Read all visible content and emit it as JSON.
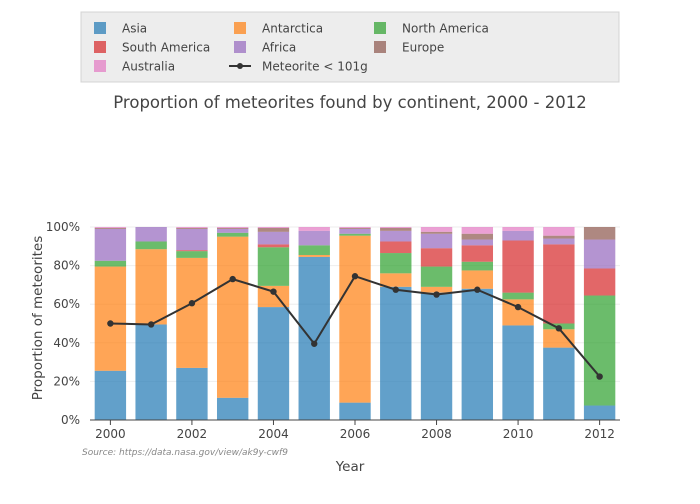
{
  "chart_data": {
    "type": "bar",
    "stacked": true,
    "title": "Proportion of meteorites found by continent, 2000 - 2012",
    "xlabel": "Year",
    "ylabel": "Proportion of meteorites",
    "source_note": "Source: https://data.nasa.gov/view/ak9y-cwf9",
    "ylim": [
      0,
      100
    ],
    "yticks": [
      "0%",
      "20%",
      "40%",
      "60%",
      "80%",
      "100%"
    ],
    "xticks": [
      "2000",
      "2002",
      "2004",
      "2006",
      "2008",
      "2010",
      "2012"
    ],
    "categories": [
      2000,
      2001,
      2002,
      2003,
      2004,
      2005,
      2006,
      2007,
      2008,
      2009,
      2010,
      2011,
      2012
    ],
    "grid": true,
    "legend_position": "top",
    "series": [
      {
        "name": "Asia",
        "color": "#1f77b4",
        "values": [
          25.5,
          49.5,
          27,
          11.5,
          58.5,
          84.5,
          9,
          69,
          66,
          68,
          49,
          37.5,
          7.5
        ]
      },
      {
        "name": "Antarctica",
        "color": "#ff7f0e",
        "values": [
          54,
          39,
          57,
          83.5,
          11,
          1,
          86.5,
          7,
          3,
          9.5,
          13.5,
          9.5,
          0
        ]
      },
      {
        "name": "North America",
        "color": "#2ca02c",
        "values": [
          3,
          4,
          3.5,
          2,
          20,
          5,
          1,
          10.5,
          10.5,
          4.5,
          3.5,
          3,
          57
        ]
      },
      {
        "name": "South America",
        "color": "#d62728",
        "values": [
          0,
          0,
          0.5,
          0,
          1.5,
          0,
          0,
          6,
          9.5,
          8.5,
          27,
          41,
          14
        ]
      },
      {
        "name": "Africa",
        "color": "#9467bd",
        "values": [
          16.5,
          7.5,
          11,
          2,
          6.5,
          7.5,
          2.5,
          5.5,
          7.5,
          3,
          5,
          3,
          15
        ]
      },
      {
        "name": "Europe",
        "color": "#8c564b",
        "values": [
          0.5,
          0,
          0.5,
          0.5,
          2,
          0,
          0.5,
          1.5,
          1,
          3,
          0,
          1.5,
          6.5
        ]
      },
      {
        "name": "Australia",
        "color": "#e377c2",
        "values": [
          0.5,
          0,
          0.5,
          0.5,
          0.5,
          2,
          0.5,
          0.5,
          2.5,
          3.5,
          2,
          4.5,
          0
        ]
      }
    ],
    "line_series": {
      "name": "Meteorite < 101g",
      "color": "#333333",
      "values": [
        50,
        49.5,
        60.5,
        73,
        66.5,
        39.5,
        74.5,
        67.5,
        65,
        67.5,
        58.5,
        47.5,
        22.5
      ]
    }
  }
}
